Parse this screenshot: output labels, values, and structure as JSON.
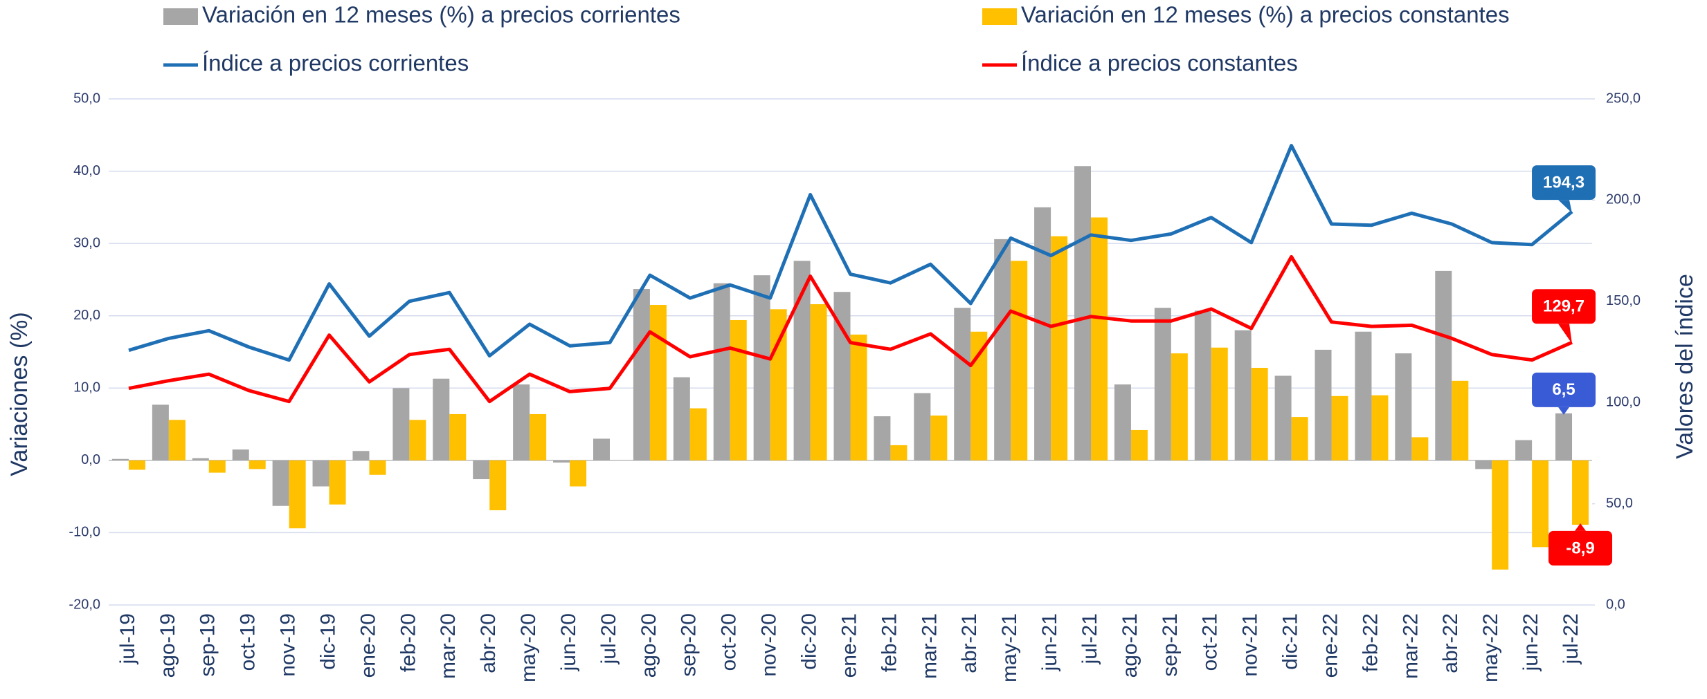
{
  "chart_data": {
    "type": "bar",
    "categories": [
      "jul-19",
      "ago-19",
      "sep-19",
      "oct-19",
      "nov-19",
      "dic-19",
      "ene-20",
      "feb-20",
      "mar-20",
      "abr-20",
      "may-20",
      "jun-20",
      "jul-20",
      "ago-20",
      "sep-20",
      "oct-20",
      "nov-20",
      "dic-20",
      "ene-21",
      "feb-21",
      "mar-21",
      "abr-21",
      "may-21",
      "jun-21",
      "jul-21",
      "ago-21",
      "sep-21",
      "oct-21",
      "nov-21",
      "dic-21",
      "ene-22",
      "feb-22",
      "mar-22",
      "abr-22",
      "may-22",
      "jun-22",
      "jul-22"
    ],
    "series": [
      {
        "name": "Variación en 12 meses (%) a precios corrientes",
        "type": "bar",
        "color": "#a6a6a6",
        "values": [
          0.2,
          7.7,
          0.3,
          1.5,
          -6.3,
          -3.6,
          1.3,
          10.0,
          11.3,
          -2.6,
          10.5,
          -0.3,
          3.0,
          23.7,
          11.5,
          24.5,
          25.6,
          27.6,
          23.3,
          6.1,
          9.3,
          21.1,
          30.6,
          35.0,
          40.7,
          10.5,
          21.1,
          20.7,
          18.0,
          11.7,
          15.3,
          17.8,
          14.8,
          26.2,
          -1.2,
          2.8,
          6.5
        ],
        "value_labels": [
          null,
          null,
          null,
          null,
          null,
          null,
          null,
          null,
          null,
          null,
          null,
          null,
          null,
          null,
          null,
          null,
          null,
          null,
          null,
          null,
          null,
          null,
          null,
          null,
          null,
          null,
          null,
          null,
          null,
          null,
          null,
          null,
          null,
          null,
          null,
          null,
          "6,5"
        ],
        "label_color": "#3a5bd6"
      },
      {
        "name": "Variación en 12 meses (%) a precios constantes",
        "type": "bar",
        "color": "#ffc000",
        "values": [
          -1.3,
          5.6,
          -1.7,
          -1.2,
          -9.4,
          -6.1,
          -2.0,
          5.6,
          6.4,
          -6.9,
          6.4,
          -3.6,
          0,
          21.5,
          7.2,
          19.4,
          20.9,
          21.6,
          17.4,
          2.1,
          6.2,
          17.8,
          27.6,
          31.0,
          33.6,
          4.2,
          14.8,
          15.6,
          12.8,
          6.0,
          8.9,
          9.0,
          3.2,
          11.0,
          -15.1,
          -12.0,
          -8.9
        ],
        "value_labels": [
          null,
          null,
          null,
          null,
          null,
          null,
          null,
          null,
          null,
          null,
          null,
          null,
          null,
          null,
          null,
          null,
          null,
          null,
          null,
          null,
          null,
          null,
          null,
          null,
          null,
          null,
          null,
          null,
          null,
          null,
          null,
          null,
          null,
          null,
          null,
          null,
          "-8,9"
        ],
        "label_color": "#ff0000"
      },
      {
        "name": "Índice a precios corrientes",
        "type": "line",
        "axis": "y2",
        "color": "#1f6fb5",
        "values": [
          125.8,
          131.7,
          135.5,
          127.4,
          121.0,
          158.6,
          132.8,
          150.0,
          154.3,
          123.1,
          138.7,
          128.0,
          129.6,
          162.9,
          151.6,
          158.1,
          151.6,
          202.7,
          163.4,
          159.1,
          168.3,
          148.9,
          181.2,
          172.6,
          182.8,
          180.1,
          183.3,
          191.4,
          179.0,
          226.9,
          188.2,
          187.6,
          193.5,
          188.2,
          179.0,
          178.0,
          194.3
        ],
        "value_labels": [
          null,
          null,
          null,
          null,
          null,
          null,
          null,
          null,
          null,
          null,
          null,
          null,
          null,
          null,
          null,
          null,
          null,
          null,
          null,
          null,
          null,
          null,
          null,
          null,
          null,
          null,
          null,
          null,
          null,
          null,
          null,
          null,
          null,
          null,
          null,
          null,
          "194,3"
        ],
        "label_color": "#1f6fb5"
      },
      {
        "name": "Índice a precios constantes",
        "type": "line",
        "axis": "y2",
        "color": "#ff0000",
        "values": [
          107.0,
          110.8,
          114.0,
          105.9,
          100.5,
          133.3,
          110.2,
          123.7,
          126.3,
          100.5,
          114.0,
          105.4,
          107.0,
          134.9,
          122.6,
          126.9,
          121.5,
          162.4,
          129.6,
          126.3,
          133.9,
          118.3,
          145.2,
          137.6,
          142.5,
          140.3,
          140.3,
          146.2,
          136.6,
          172.0,
          139.8,
          137.6,
          138.2,
          131.7,
          123.7,
          121.0,
          129.7
        ],
        "value_labels": [
          null,
          null,
          null,
          null,
          null,
          null,
          null,
          null,
          null,
          null,
          null,
          null,
          null,
          null,
          null,
          null,
          null,
          null,
          null,
          null,
          null,
          null,
          null,
          null,
          null,
          null,
          null,
          null,
          null,
          null,
          null,
          null,
          null,
          null,
          null,
          null,
          "129,7"
        ],
        "label_color": "#ff0000"
      }
    ],
    "y_label": "Variaciones (%)",
    "y2_label": "Valores del índice",
    "ylim": [
      -20,
      50
    ],
    "yticks": [
      {
        "value": -20,
        "label": "-20,0"
      },
      {
        "value": -10,
        "label": "-10,0"
      },
      {
        "value": 0,
        "label": "0,0"
      },
      {
        "value": 10,
        "label": "10,0"
      },
      {
        "value": 20,
        "label": "20,0"
      },
      {
        "value": 30,
        "label": "30,0"
      },
      {
        "value": 40,
        "label": "40,0"
      },
      {
        "value": 50,
        "label": "50,0"
      }
    ],
    "y2lim": [
      0,
      250
    ],
    "y2ticks": [
      {
        "value": 0,
        "label": "0,0"
      },
      {
        "value": 50,
        "label": "50,0"
      },
      {
        "value": 100,
        "label": "100,0"
      },
      {
        "value": 150,
        "label": "150,0"
      },
      {
        "value": 200,
        "label": "200,0"
      },
      {
        "value": 250,
        "label": "250,0"
      }
    ],
    "grid": true,
    "legend": "top"
  }
}
